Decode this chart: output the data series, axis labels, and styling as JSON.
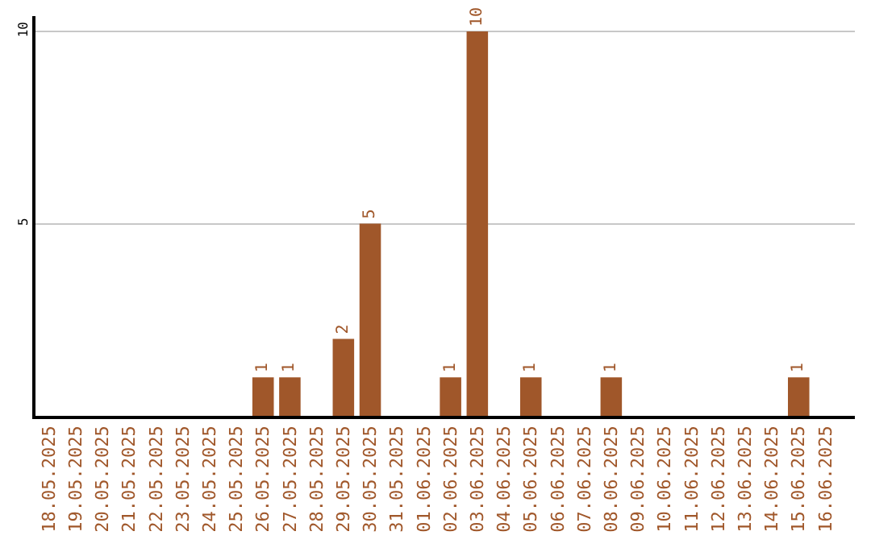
{
  "chart_data": {
    "type": "bar",
    "categories": [
      "18.05.2025",
      "19.05.2025",
      "20.05.2025",
      "21.05.2025",
      "22.05.2025",
      "23.05.2025",
      "24.05.2025",
      "25.05.2025",
      "26.05.2025",
      "27.05.2025",
      "28.05.2025",
      "29.05.2025",
      "30.05.2025",
      "31.05.2025",
      "01.06.2025",
      "02.06.2025",
      "03.06.2025",
      "04.06.2025",
      "05.06.2025",
      "06.06.2025",
      "07.06.2025",
      "08.06.2025",
      "09.06.2025",
      "10.06.2025",
      "11.06.2025",
      "12.06.2025",
      "13.06.2025",
      "14.06.2025",
      "15.06.2025",
      "16.06.2025"
    ],
    "values": [
      0,
      0,
      0,
      0,
      0,
      0,
      0,
      0,
      1,
      1,
      0,
      2,
      5,
      0,
      0,
      1,
      10,
      0,
      1,
      0,
      0,
      1,
      0,
      0,
      0,
      0,
      0,
      0,
      1,
      0
    ],
    "value_labels": [
      null,
      null,
      null,
      null,
      null,
      null,
      null,
      null,
      "1",
      "1",
      null,
      "2",
      "5",
      null,
      null,
      "1",
      "10",
      null,
      "1",
      null,
      null,
      "1",
      null,
      null,
      null,
      null,
      null,
      null,
      "1",
      null
    ],
    "color": "#a0572a",
    "ylim": [
      0,
      10.4
    ],
    "yticks": [
      5,
      10
    ],
    "grid": "y"
  }
}
